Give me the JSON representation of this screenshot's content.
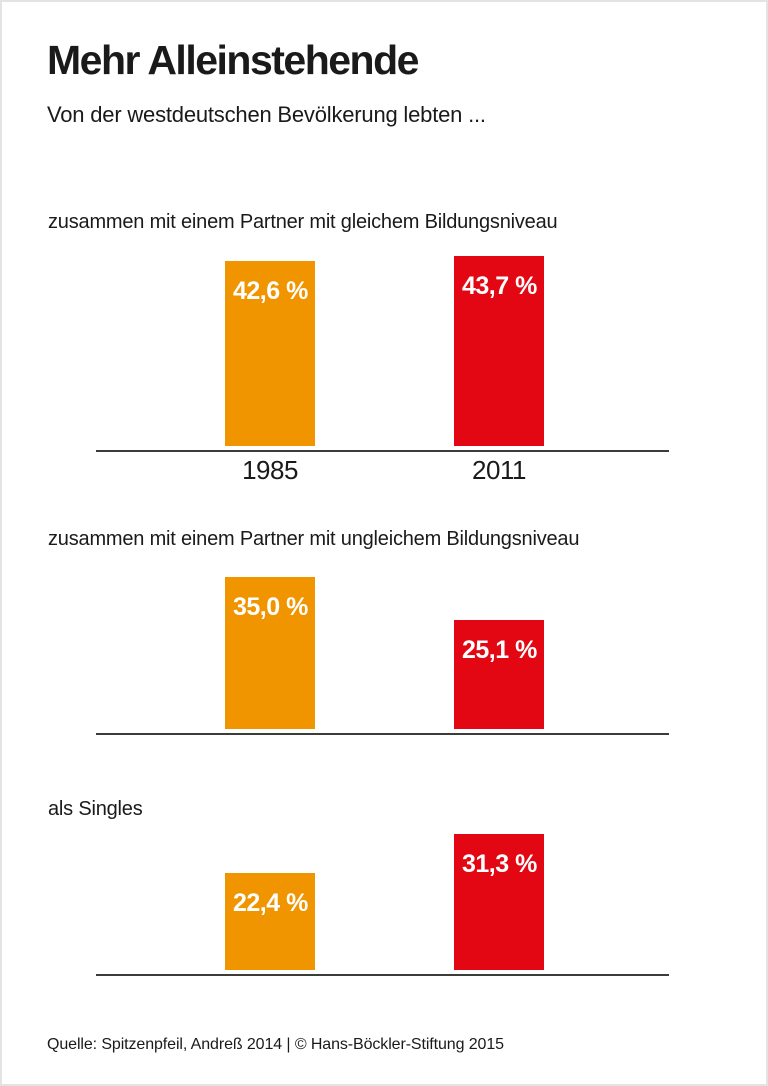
{
  "page": {
    "title": "Mehr Alleinstehende",
    "subtitle": "Von der westdeutschen Bevölkerung lebten ...",
    "source": "Quelle: Spitzenpfeil, Andreß 2014 | © Hans-Böckler-Stiftung 2015"
  },
  "colors": {
    "orange_1985": "#F09400",
    "red_2011": "#E30613",
    "axis": "#3C3C3B",
    "text": "#1A1A1A",
    "value_label": "#FFFFFF"
  },
  "chart_data": {
    "type": "bar",
    "unit": "percent",
    "categories": [
      "1985",
      "2011"
    ],
    "series_colors": [
      "#F09400",
      "#E30613"
    ],
    "grid": false,
    "legend": "none",
    "value_axis_hidden": true,
    "sections": [
      {
        "label": "zusammen mit einem Partner mit gleichem Bildungsniveau",
        "values": [
          42.6,
          43.7
        ],
        "value_labels": [
          "42,6 %",
          "43,7 %"
        ],
        "show_year_labels": true
      },
      {
        "label": "zusammen mit einem Partner mit ungleichem Bildungsniveau",
        "values": [
          35.0,
          25.1
        ],
        "value_labels": [
          "35,0 %",
          "25,1 %"
        ],
        "show_year_labels": false
      },
      {
        "label": "als Singles",
        "values": [
          22.4,
          31.3
        ],
        "value_labels": [
          "22,4 %",
          "31,3 %"
        ],
        "show_year_labels": false
      }
    ]
  }
}
